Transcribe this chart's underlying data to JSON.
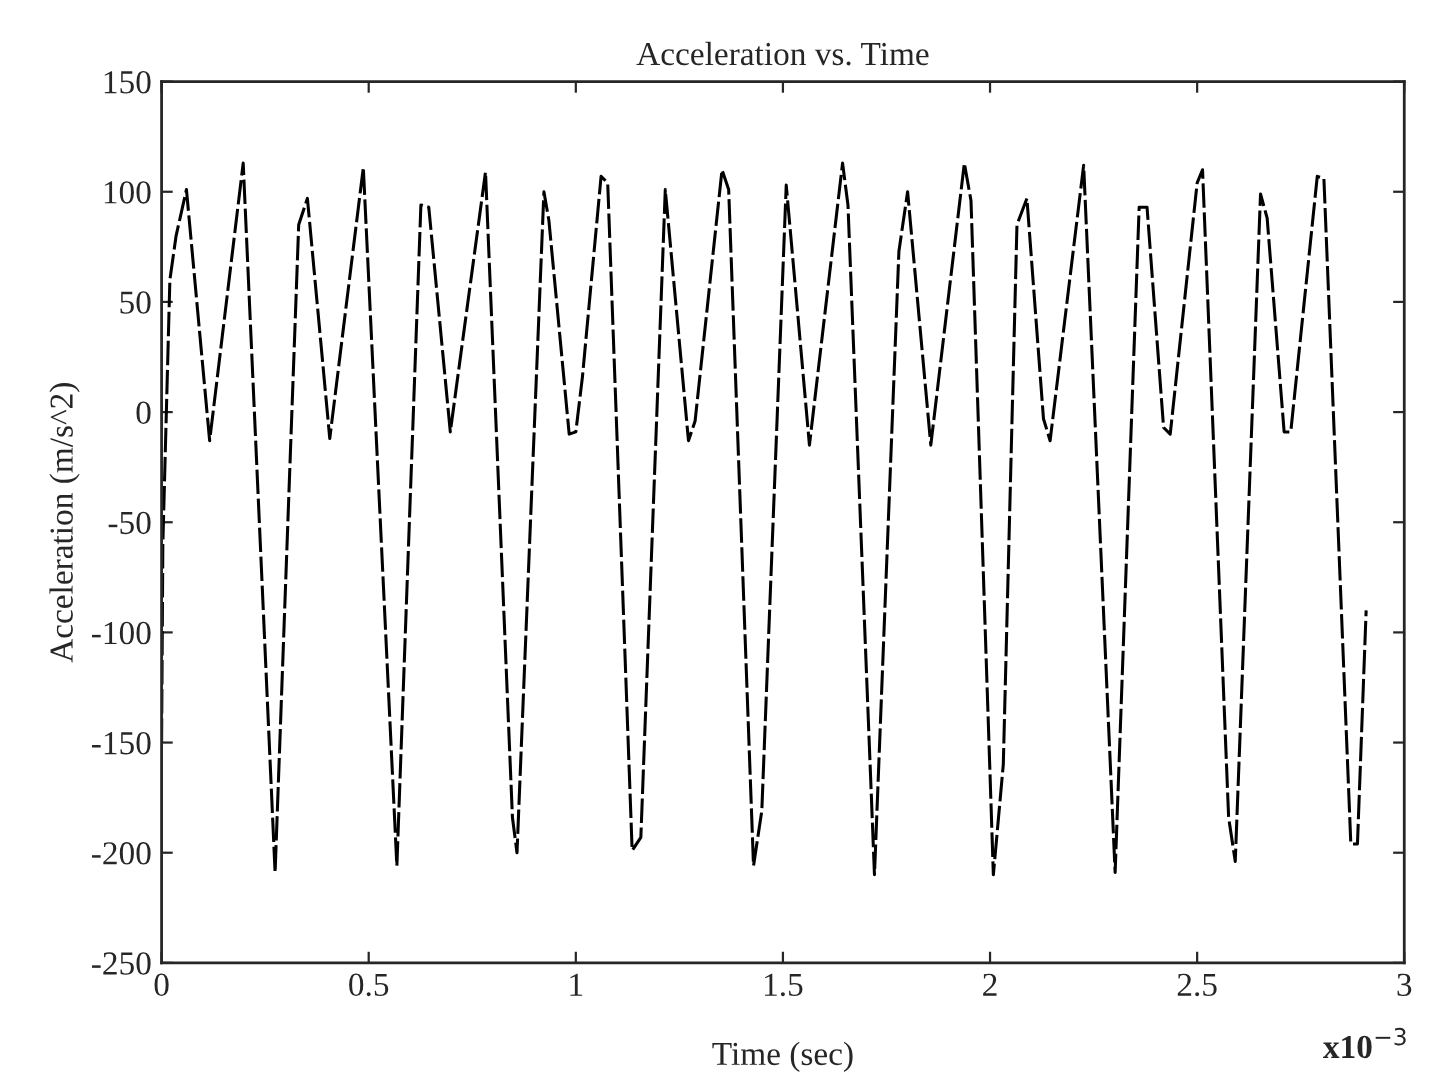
{
  "chart_data": {
    "type": "line",
    "title": "Acceleration vs. Time",
    "xlabel": "Time (sec)",
    "ylabel": "Acceleration (m/s^2)",
    "annotations": [
      "x10$^{−3}$"
    ],
    "series": [
      {
        "color": "#000000",
        "line_style": "dashed",
        "marker": "none",
        "x": [
          0,
          0.003,
          0.02,
          0.035,
          0.06,
          0.116,
          0.197,
          0.274,
          0.331,
          0.352,
          0.406,
          0.487,
          0.568,
          0.626,
          0.645,
          0.697,
          0.782,
          0.847,
          0.858,
          0.923,
          0.935,
          0.984,
          1.0,
          1.016,
          1.061,
          1.077,
          1.136,
          1.157,
          1.216,
          1.272,
          1.288,
          1.353,
          1.369,
          1.429,
          1.449,
          1.508,
          1.564,
          1.644,
          1.657,
          1.721,
          1.78,
          1.801,
          1.857,
          1.938,
          1.954,
          2.008,
          2.032,
          2.065,
          2.089,
          2.129,
          2.145,
          2.226,
          2.302,
          2.36,
          2.379,
          2.419,
          2.435,
          2.5,
          2.513,
          2.576,
          2.592,
          2.653,
          2.669,
          2.71,
          2.726,
          2.79,
          2.806,
          2.871,
          2.887,
          2.908
        ],
        "values": [
          -150,
          -60,
          60,
          80,
          101,
          -13,
          113,
          -209,
          85,
          97,
          -12,
          111,
          -206,
          94,
          93,
          -9,
          109,
          -184,
          -200,
          100,
          87,
          -10,
          -9,
          16,
          107,
          104,
          -199,
          -193,
          101,
          -13,
          -4,
          110,
          101,
          -206,
          -181,
          103,
          -15,
          113,
          94,
          -210,
          73,
          100,
          -15,
          113,
          96,
          -210,
          -160,
          85,
          97,
          -3,
          -13,
          112,
          -209,
          93,
          93,
          -7,
          -10,
          104,
          110,
          -184,
          -204,
          99,
          88,
          -9,
          -9,
          107,
          106,
          -196,
          -196,
          -90
        ]
      }
    ],
    "xlim": [
      0,
      3
    ],
    "xticks": [
      0,
      0.5,
      1,
      1.5,
      2,
      2.5,
      3
    ],
    "ylim": [
      -250,
      150
    ],
    "yticks": [
      -250,
      -200,
      -150,
      -100,
      -50,
      0,
      50,
      100,
      150
    ],
    "grid": false,
    "legend": false
  }
}
